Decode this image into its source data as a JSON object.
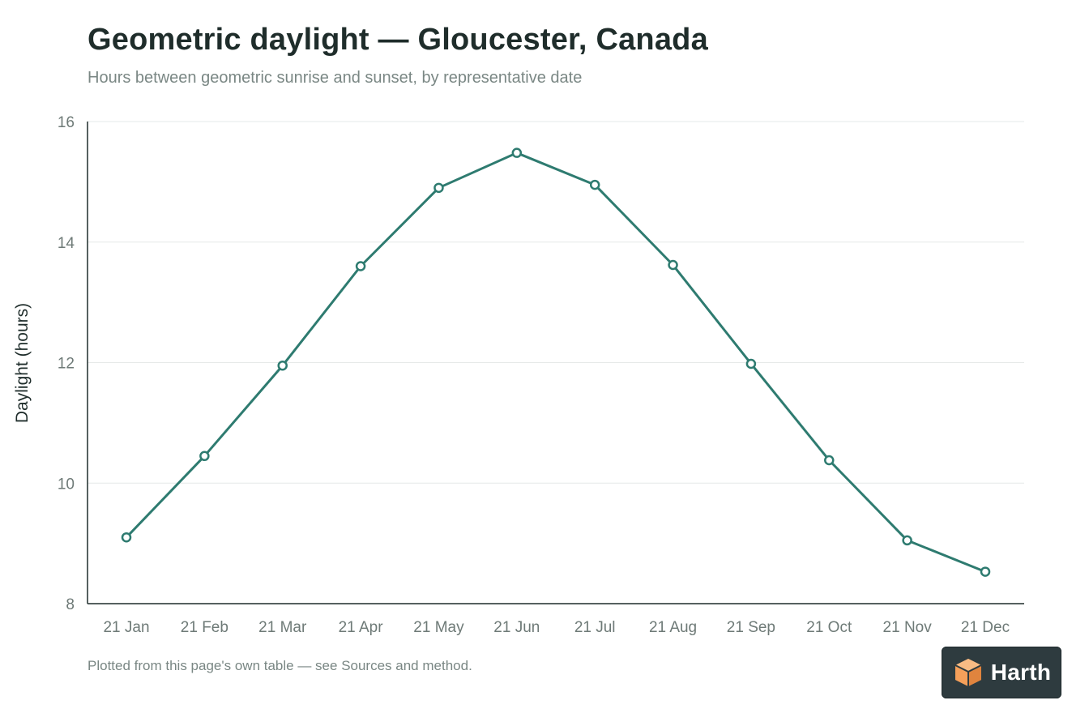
{
  "title": "Geometric daylight — Gloucester, Canada",
  "subtitle": "Hours between geometric sunrise and sunset, by representative date",
  "footnote": "Plotted from this page's own table — see Sources and method.",
  "brand": {
    "name": "Harth",
    "logo_icon": "cube-logo-icon"
  },
  "colors": {
    "line": "#2e7b70",
    "grid": "#e6e9e8",
    "axis": "#1f2d2b",
    "logo_orange": "#f5a05a"
  },
  "chart_data": {
    "type": "line",
    "categories": [
      "21 Jan",
      "21 Feb",
      "21 Mar",
      "21 Apr",
      "21 May",
      "21 Jun",
      "21 Jul",
      "21 Aug",
      "21 Sep",
      "21 Oct",
      "21 Nov",
      "21 Dec"
    ],
    "series": [
      {
        "values": [
          9.1,
          10.45,
          11.95,
          13.6,
          14.9,
          15.48,
          14.95,
          13.62,
          11.98,
          10.38,
          9.05,
          8.53
        ]
      }
    ],
    "xlabel": "",
    "ylabel": "Daylight (hours)",
    "ylim": [
      8,
      16
    ],
    "yticks": [
      8,
      10,
      12,
      14,
      16
    ],
    "grid": true,
    "markers": "hollow-circle",
    "legend": "none"
  }
}
